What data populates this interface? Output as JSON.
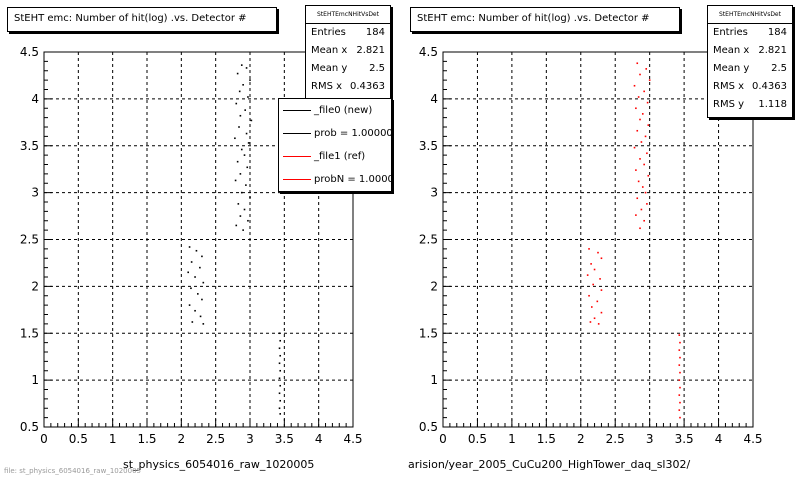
{
  "panels": [
    {
      "title": "StEHT emc: Number of hit(log) .vs. Detector #",
      "stats": {
        "name": "StEHTEmcNHitVsDet",
        "rows": [
          {
            "label": "Entries",
            "value": "184"
          },
          {
            "label": "Mean x",
            "value": "2.821"
          },
          {
            "label": "Mean y",
            "value": "2.5"
          },
          {
            "label": "RMS x",
            "value": "0.4363"
          }
        ]
      },
      "legend": {
        "entries": [
          {
            "label": "_file0 (new)",
            "color": "#000000"
          },
          {
            "label": "prob = 1.000000",
            "color": "#000000"
          },
          {
            "label": "_file1 (ref)",
            "color": "#ff0000"
          },
          {
            "label": "probN = 1.000000",
            "color": "#ff0000"
          }
        ]
      },
      "xtitle": "st_physics_6054016_raw_1020005"
    },
    {
      "title": "StEHT emc: Number of hit(log) .vs. Detector #",
      "stats": {
        "name": "StEHTEmcNHitVsDet",
        "rows": [
          {
            "label": "Entries",
            "value": "184"
          },
          {
            "label": "Mean x",
            "value": "2.821"
          },
          {
            "label": "Mean y",
            "value": "2.5"
          },
          {
            "label": "RMS x",
            "value": "0.4363"
          },
          {
            "label": "RMS y",
            "value": "1.118"
          }
        ]
      },
      "xtitle": "arision/year_2005_CuCu200_HighTower_daq_sl302/"
    }
  ],
  "footer": "file: st_physics_6054016_raw_1020005",
  "chart_data": [
    {
      "type": "scatter",
      "title": "StEHT emc: Number of hit(log) .vs. Detector #",
      "xlabel": "st_physics_6054016_raw_1020005",
      "xlim": [
        0,
        4.5
      ],
      "ylim": [
        0.5,
        4.5
      ],
      "xticks": [
        0,
        0.5,
        1,
        1.5,
        2,
        2.5,
        3,
        3.5,
        4,
        4.5
      ],
      "yticks": [
        0.5,
        1,
        1.5,
        2,
        2.5,
        3,
        3.5,
        4,
        4.5
      ],
      "grid": true,
      "series": [
        {
          "color": "#000000",
          "points": [
            [
              2.88,
              4.36
            ],
            [
              2.95,
              4.33
            ],
            [
              2.82,
              4.27
            ],
            [
              3.0,
              4.2
            ],
            [
              2.9,
              4.15
            ],
            [
              2.85,
              4.08
            ],
            [
              2.97,
              4.02
            ],
            [
              2.8,
              3.95
            ],
            [
              2.93,
              3.88
            ],
            [
              2.86,
              3.82
            ],
            [
              3.02,
              3.77
            ],
            [
              2.84,
              3.7
            ],
            [
              2.95,
              3.63
            ],
            [
              2.78,
              3.58
            ],
            [
              2.98,
              3.53
            ],
            [
              2.88,
              3.46
            ],
            [
              2.92,
              3.4
            ],
            [
              2.82,
              3.33
            ],
            [
              2.96,
              3.27
            ],
            [
              2.86,
              3.2
            ],
            [
              2.79,
              3.13
            ],
            [
              2.94,
              3.08
            ],
            [
              2.88,
              3.0
            ],
            [
              3.0,
              2.95
            ],
            [
              2.83,
              2.88
            ],
            [
              2.92,
              2.82
            ],
            [
              2.86,
              2.75
            ],
            [
              2.97,
              2.7
            ],
            [
              2.8,
              2.65
            ],
            [
              2.9,
              2.6
            ],
            [
              2.12,
              2.42
            ],
            [
              2.22,
              2.38
            ],
            [
              2.3,
              2.32
            ],
            [
              2.15,
              2.26
            ],
            [
              2.27,
              2.2
            ],
            [
              2.1,
              2.15
            ],
            [
              2.2,
              2.1
            ],
            [
              2.32,
              2.04
            ],
            [
              2.14,
              1.98
            ],
            [
              2.24,
              1.92
            ],
            [
              2.3,
              1.86
            ],
            [
              2.12,
              1.8
            ],
            [
              2.2,
              1.74
            ],
            [
              2.28,
              1.68
            ],
            [
              2.16,
              1.62
            ],
            [
              2.32,
              1.6
            ],
            [
              3.43,
              1.5
            ],
            [
              3.44,
              1.42
            ],
            [
              3.43,
              1.34
            ],
            [
              3.44,
              1.26
            ],
            [
              3.43,
              1.18
            ],
            [
              3.44,
              1.1
            ],
            [
              3.43,
              1.02
            ],
            [
              3.44,
              0.94
            ],
            [
              3.43,
              0.86
            ],
            [
              3.44,
              0.78
            ],
            [
              3.43,
              0.7
            ],
            [
              3.44,
              0.64
            ]
          ]
        }
      ]
    },
    {
      "type": "scatter",
      "title": "StEHT emc: Number of hit(log) .vs. Detector #",
      "xlabel": "arision/year_2005_CuCu200_HighTower_daq_sl302/",
      "xlim": [
        0,
        4.5
      ],
      "ylim": [
        0.5,
        4.5
      ],
      "xticks": [
        0,
        0.5,
        1,
        1.5,
        2,
        2.5,
        3,
        3.5,
        4,
        4.5
      ],
      "yticks": [
        0.5,
        1,
        1.5,
        2,
        2.5,
        3,
        3.5,
        4,
        4.5
      ],
      "grid": true,
      "series": [
        {
          "color": "#ff0000",
          "points": [
            [
              2.82,
              4.38
            ],
            [
              2.95,
              4.32
            ],
            [
              2.86,
              4.26
            ],
            [
              3.0,
              4.2
            ],
            [
              2.78,
              4.14
            ],
            [
              2.92,
              4.08
            ],
            [
              2.84,
              4.02
            ],
            [
              2.97,
              3.96
            ],
            [
              2.8,
              3.9
            ],
            [
              2.9,
              3.84
            ],
            [
              2.86,
              3.78
            ],
            [
              2.98,
              3.72
            ],
            [
              2.82,
              3.66
            ],
            [
              2.94,
              3.6
            ],
            [
              2.88,
              3.54
            ],
            [
              2.78,
              3.48
            ],
            [
              2.96,
              3.42
            ],
            [
              2.86,
              3.36
            ],
            [
              2.92,
              3.3
            ],
            [
              2.8,
              3.24
            ],
            [
              2.98,
              3.18
            ],
            [
              2.84,
              3.12
            ],
            [
              2.9,
              3.06
            ],
            [
              2.94,
              3.0
            ],
            [
              2.82,
              2.94
            ],
            [
              2.96,
              2.88
            ],
            [
              2.88,
              2.82
            ],
            [
              2.8,
              2.76
            ],
            [
              2.92,
              2.7
            ],
            [
              2.86,
              2.62
            ],
            [
              2.12,
              2.4
            ],
            [
              2.25,
              2.36
            ],
            [
              2.3,
              2.3
            ],
            [
              2.15,
              2.24
            ],
            [
              2.2,
              2.18
            ],
            [
              2.1,
              2.12
            ],
            [
              2.28,
              2.08
            ],
            [
              2.18,
              2.02
            ],
            [
              2.3,
              1.96
            ],
            [
              2.12,
              1.9
            ],
            [
              2.24,
              1.84
            ],
            [
              2.16,
              1.78
            ],
            [
              2.3,
              1.72
            ],
            [
              2.2,
              1.66
            ],
            [
              2.14,
              1.62
            ],
            [
              2.26,
              1.6
            ],
            [
              3.43,
              1.48
            ],
            [
              3.44,
              1.4
            ],
            [
              3.43,
              1.32
            ],
            [
              3.44,
              1.24
            ],
            [
              3.43,
              1.16
            ],
            [
              3.44,
              1.08
            ],
            [
              3.43,
              1.0
            ],
            [
              3.44,
              0.92
            ],
            [
              3.43,
              0.84
            ],
            [
              3.44,
              0.76
            ],
            [
              3.43,
              0.68
            ],
            [
              3.44,
              0.6
            ]
          ]
        }
      ]
    }
  ]
}
